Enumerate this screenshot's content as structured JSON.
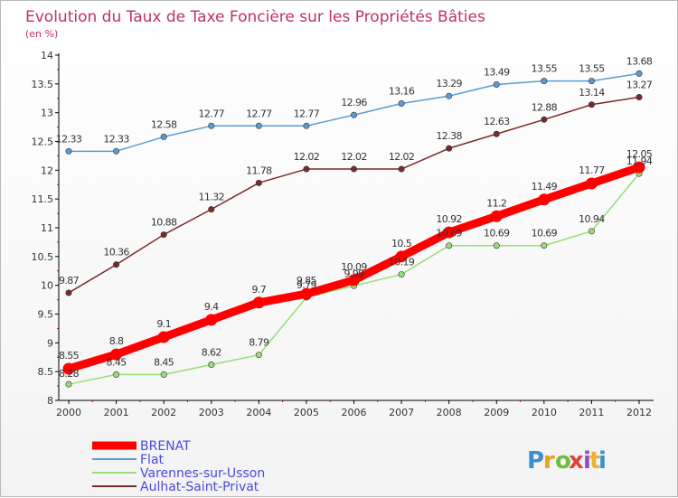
{
  "chart_data": {
    "type": "line",
    "title": "Evolution du Taux de Taxe Foncière sur les Propriétés Bâties",
    "subtitle": "(en %)",
    "xlabel": "",
    "ylabel": "",
    "ylim": [
      8,
      14
    ],
    "yticks": [
      "8",
      "8.5",
      "9",
      "9.5",
      "10",
      "10.5",
      "11",
      "11.5",
      "12",
      "12.5",
      "13",
      "13.5",
      "14"
    ],
    "grid": false,
    "legend": "bottom-left",
    "categories": [
      "2000",
      "2001",
      "2002",
      "2003",
      "2004",
      "2005",
      "2006",
      "2007",
      "2008",
      "2009",
      "2010",
      "2011",
      "2012"
    ],
    "series": [
      {
        "name": "BRENAT",
        "color": "#ff0000",
        "values": [
          8.55,
          8.8,
          9.1,
          9.4,
          9.7,
          9.85,
          10.09,
          10.5,
          10.92,
          11.2,
          11.49,
          11.77,
          12.05
        ],
        "labels": [
          "8.55",
          "8.8",
          "9.1",
          "9.4",
          "9.7",
          "9.85",
          "10.09",
          "10.5",
          "10.92",
          "11.2",
          "11.49",
          "11.77",
          "12.05"
        ]
      },
      {
        "name": "Flat",
        "color": "#5b9bd5",
        "values": [
          12.33,
          12.33,
          12.58,
          12.77,
          12.77,
          12.77,
          12.96,
          13.16,
          13.29,
          13.49,
          13.55,
          13.55,
          13.68
        ],
        "labels": [
          "12.33",
          "12.33",
          "12.58",
          "12.77",
          "12.77",
          "12.77",
          "12.96",
          "13.16",
          "13.29",
          "13.49",
          "13.55",
          "13.55",
          "13.68"
        ]
      },
      {
        "name": "Varennes-sur-Usson",
        "color": "#99dd77",
        "values": [
          8.28,
          8.45,
          8.45,
          8.62,
          8.79,
          9.79,
          9.99,
          10.19,
          10.69,
          10.69,
          10.69,
          10.94,
          11.94
        ],
        "labels": [
          "8.28",
          "8.45",
          "8.45",
          "8.62",
          "8.79",
          "9.79",
          "9.99",
          "10.19",
          "10.69",
          "10.69",
          "10.69",
          "10.94",
          "11.94"
        ]
      },
      {
        "name": "Aulhat-Saint-Privat",
        "color": "#7a2a2a",
        "values": [
          9.87,
          10.36,
          10.88,
          11.32,
          11.78,
          12.02,
          12.02,
          12.02,
          12.38,
          12.63,
          12.88,
          13.14,
          13.27
        ],
        "labels": [
          "9.87",
          "10.36",
          "10.88",
          "11.32",
          "11.78",
          "12.02",
          "12.02",
          "12.02",
          "12.38",
          "12.63",
          "12.88",
          "13.14",
          "13.27"
        ]
      }
    ]
  },
  "branding": {
    "logo_text": "Proxiti"
  },
  "colors": {
    "title": "#c0306a",
    "axis": "#000000",
    "label": "#333333",
    "legend_text": "#4a4adc"
  }
}
